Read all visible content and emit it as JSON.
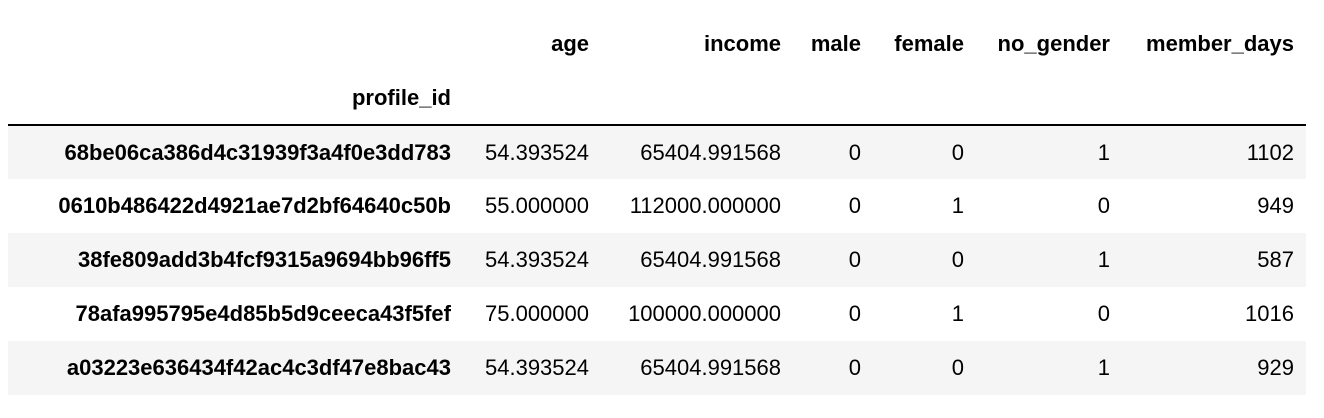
{
  "table": {
    "index_name": "profile_id",
    "columns": [
      "age",
      "income",
      "male",
      "female",
      "no_gender",
      "member_days"
    ],
    "rows": [
      {
        "index": "68be06ca386d4c31939f3a4f0e3dd783",
        "values": [
          "54.393524",
          "65404.991568",
          "0",
          "0",
          "1",
          "1102"
        ]
      },
      {
        "index": "0610b486422d4921ae7d2bf64640c50b",
        "values": [
          "55.000000",
          "112000.000000",
          "0",
          "1",
          "0",
          "949"
        ]
      },
      {
        "index": "38fe809add3b4fcf9315a9694bb96ff5",
        "values": [
          "54.393524",
          "65404.991568",
          "0",
          "0",
          "1",
          "587"
        ]
      },
      {
        "index": "78afa995795e4d85b5d9ceeca43f5fef",
        "values": [
          "75.000000",
          "100000.000000",
          "0",
          "1",
          "0",
          "1016"
        ]
      },
      {
        "index": "a03223e636434f42ac4c3df47e8bac43",
        "values": [
          "54.393524",
          "65404.991568",
          "0",
          "0",
          "1",
          "929"
        ]
      }
    ]
  }
}
